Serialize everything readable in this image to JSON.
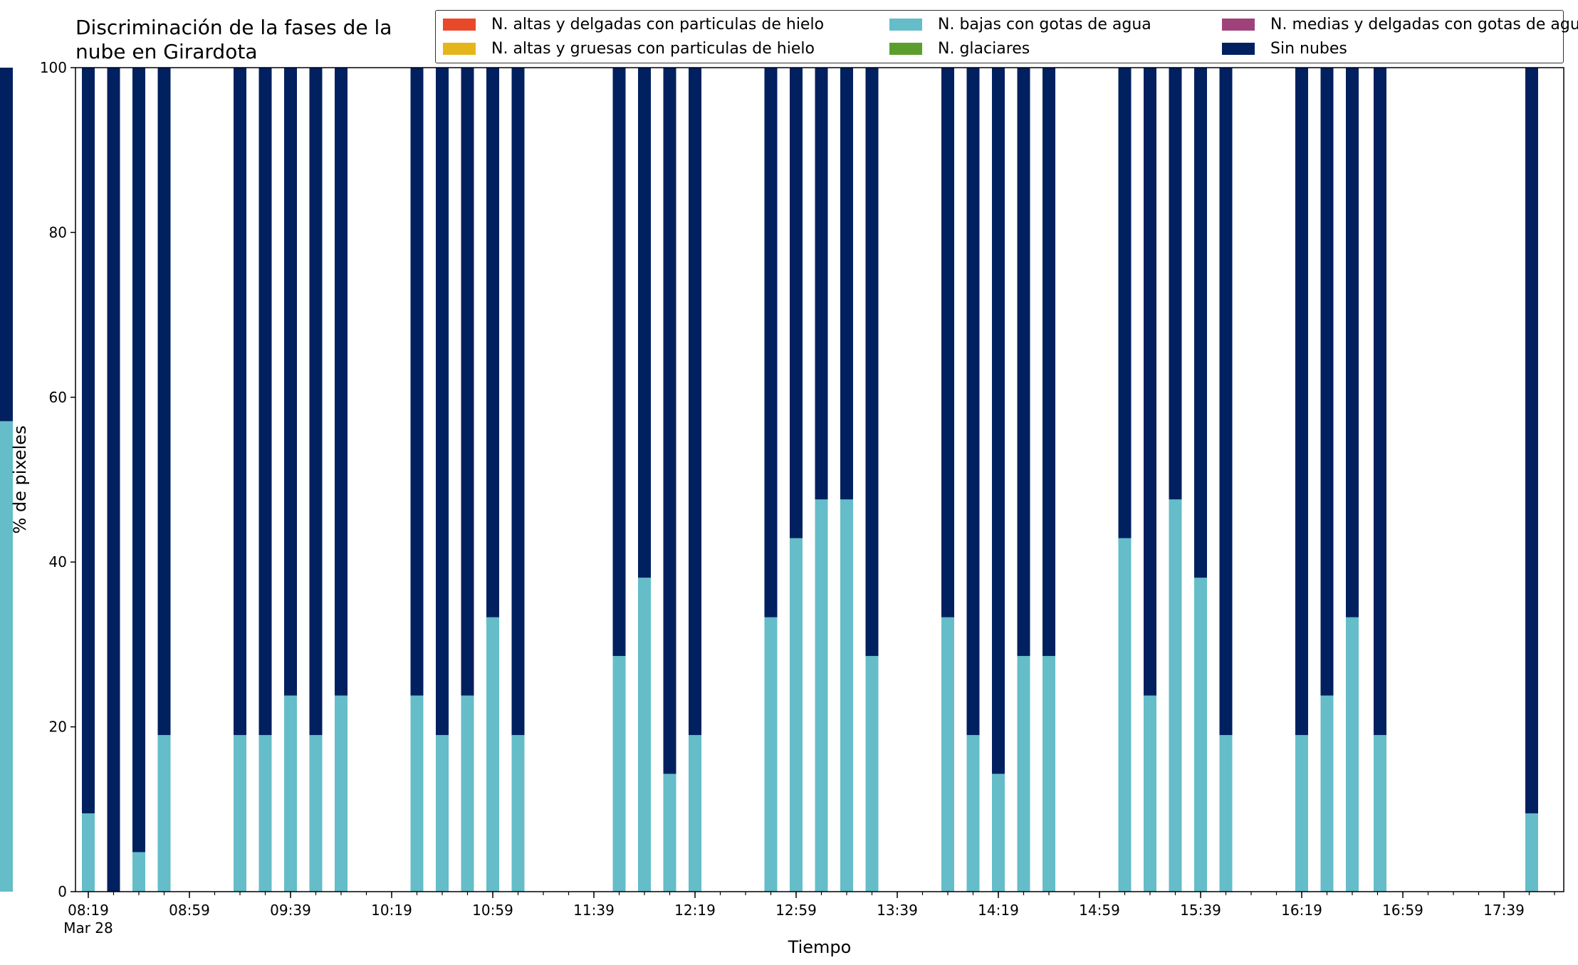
{
  "chart_data": {
    "type": "bar",
    "stacked": true,
    "title": "Discriminación de la fases de la nube en Girardota",
    "xlabel": "Tiempo",
    "ylabel": "% de pixeles",
    "ylim": [
      0,
      100
    ],
    "yticks": [
      "0",
      "20",
      "40",
      "60",
      "80",
      "100"
    ],
    "xtick_labels": [
      "08:19",
      "08:59",
      "09:39",
      "10:19",
      "10:59",
      "11:39",
      "12:19",
      "12:59",
      "13:39",
      "14:19",
      "14:59",
      "15:39",
      "16:19",
      "16:59",
      "17:39"
    ],
    "x_date_label": "Mar 28",
    "grid": false,
    "legend_position": "top-right",
    "series": [
      {
        "name": "N. altas y delgadas con particulas de hielo",
        "color": "#e8492a",
        "values": [
          0,
          0,
          0,
          0,
          0,
          0,
          0,
          0,
          0,
          0,
          0,
          0,
          0,
          0,
          0,
          0,
          0,
          0,
          0,
          0,
          0,
          0,
          0,
          0,
          0,
          0,
          0,
          0,
          0,
          0,
          0,
          0,
          0,
          0,
          0,
          0,
          0,
          0,
          0,
          0,
          0,
          0,
          0,
          0,
          0,
          0,
          0,
          0,
          0,
          0,
          0,
          0,
          0,
          0,
          0,
          0,
          0,
          0,
          0
        ]
      },
      {
        "name": "N. altas y gruesas con particulas de hielo",
        "color": "#e4b61c",
        "values": [
          0,
          0,
          0,
          0,
          0,
          0,
          0,
          0,
          0,
          0,
          0,
          0,
          0,
          0,
          0,
          0,
          0,
          0,
          0,
          0,
          0,
          0,
          0,
          0,
          0,
          0,
          0,
          0,
          0,
          0,
          0,
          0,
          0,
          0,
          0,
          0,
          0,
          0,
          0,
          0,
          0,
          0,
          0,
          0,
          0,
          0,
          0,
          0,
          0,
          0,
          0,
          0,
          0,
          0,
          0,
          0,
          0,
          0,
          0
        ]
      },
      {
        "name": "N. bajas con gotas de agua",
        "color": "#64bdc8",
        "values": [
          9.5,
          0,
          4.8,
          19,
          0,
          0,
          19,
          19,
          23.8,
          19,
          23.8,
          0,
          0,
          23.8,
          19,
          23.8,
          33.3,
          19,
          0,
          0,
          0,
          28.6,
          38.1,
          14.3,
          19,
          0,
          0,
          33.3,
          42.9,
          47.6,
          47.6,
          28.6,
          0,
          0,
          33.3,
          19,
          14.3,
          28.6,
          28.6,
          0,
          0,
          42.9,
          23.8,
          47.6,
          38.1,
          19,
          0,
          0,
          19,
          23.8,
          33.3,
          0,
          0,
          19,
          0,
          0,
          0,
          0,
          0
        ]
      },
      {
        "name": "N. glaciares",
        "color": "#5c9e2e",
        "values": [
          0,
          0,
          0,
          0,
          0,
          0,
          0,
          0,
          0,
          0,
          0,
          0,
          0,
          0,
          0,
          0,
          0,
          0,
          0,
          0,
          0,
          0,
          0,
          0,
          0,
          0,
          0,
          0,
          0,
          0,
          0,
          0,
          0,
          0,
          0,
          0,
          0,
          0,
          0,
          0,
          0,
          0,
          0,
          0,
          0,
          0,
          0,
          0,
          0,
          0,
          0,
          0,
          0,
          0,
          0,
          0,
          0,
          0,
          0
        ]
      },
      {
        "name": "N. medias y delgadas con gotas de agua",
        "color": "#a0427a",
        "values": [
          0,
          0,
          0,
          0,
          0,
          0,
          0,
          0,
          0,
          0,
          0,
          0,
          0,
          0,
          0,
          0,
          0,
          0,
          0,
          0,
          0,
          0,
          0,
          0,
          0,
          0,
          0,
          0,
          0,
          0,
          0,
          0,
          0,
          0,
          0,
          0,
          0,
          0,
          0,
          0,
          0,
          0,
          0,
          0,
          0,
          0,
          0,
          0,
          0,
          0,
          0,
          0,
          0,
          0,
          0,
          0,
          0,
          0,
          0
        ]
      },
      {
        "name": "Sin nubes",
        "color": "#00205f",
        "values": [
          90.5,
          100,
          95.2,
          81,
          0,
          0,
          81,
          81,
          76.2,
          81,
          76.2,
          0,
          0,
          76.2,
          81,
          76.2,
          66.7,
          81,
          0,
          0,
          0,
          71.4,
          61.9,
          85.7,
          81,
          0,
          0,
          66.7,
          57.1,
          52.4,
          52.4,
          71.4,
          0,
          0,
          66.7,
          81,
          85.7,
          71.4,
          71.4,
          0,
          0,
          57.1,
          76.2,
          52.4,
          61.9,
          81,
          0,
          0,
          81,
          76.2,
          66.7,
          0,
          0,
          81,
          0,
          0,
          0,
          0,
          0
        ]
      },
      {
        "name": "",
        "values_note": ""
      }
    ],
    "tail_bars": {
      "N. bajas con gotas de agua": [
        9.5,
        0,
        33.3,
        61.9,
        57.1,
        66.7,
        57.1
      ],
      "Sin nubes": [
        90.5,
        0,
        66.7,
        38.1,
        42.9,
        33.3,
        42.9
      ]
    }
  }
}
